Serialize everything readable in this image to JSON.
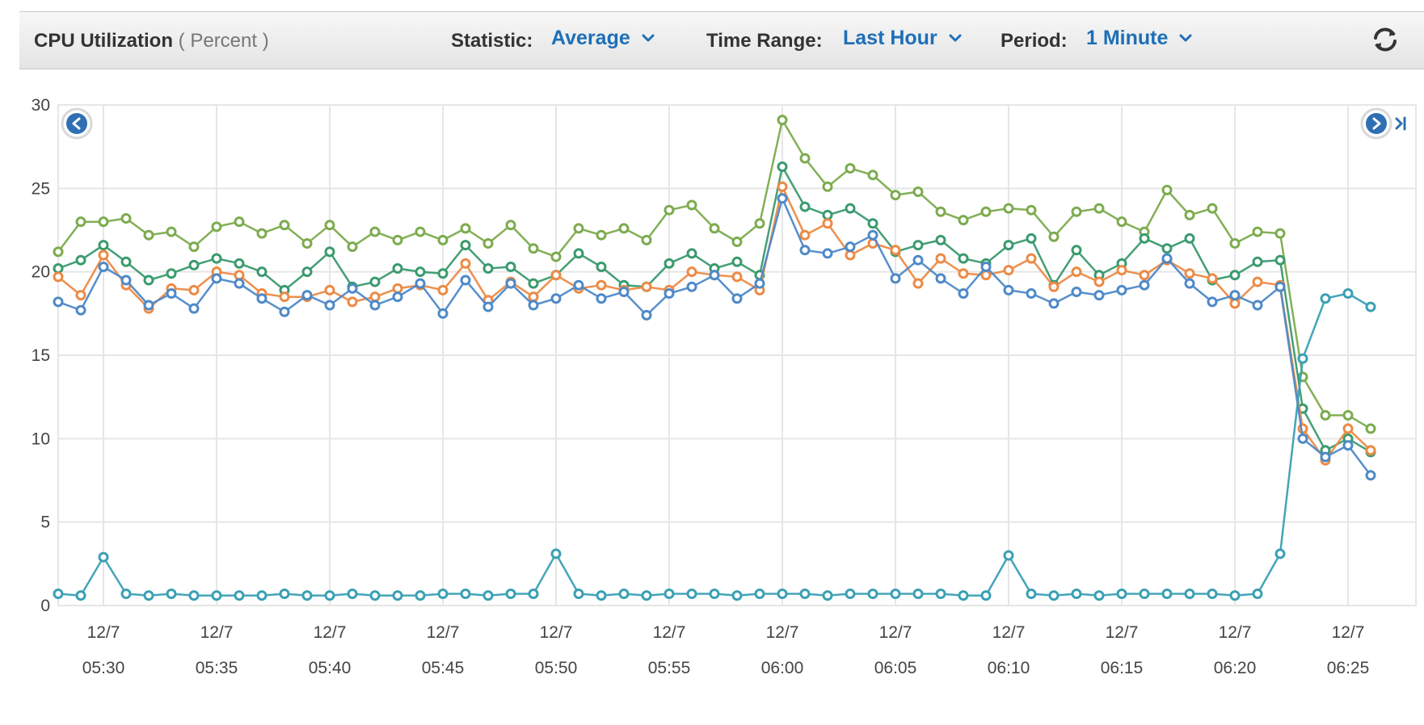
{
  "header": {
    "title": "CPU Utilization",
    "unit": "( Percent )",
    "statistic_label": "Statistic:",
    "statistic_value": "Average",
    "time_range_label": "Time Range:",
    "time_range_value": "Last Hour",
    "period_label": "Period:",
    "period_value": "1 Minute"
  },
  "icons": {
    "dropdown": "chevron-down-icon",
    "refresh": "refresh-icon",
    "pan_left": "chevron-left-circle-icon",
    "pan_right": "chevron-right-circle-icon",
    "jump_end": "skip-to-end-icon"
  },
  "colors": {
    "accent": "#1e6fb7",
    "grid": "#e6e6e6"
  },
  "chart_data": {
    "type": "line",
    "title": "CPU Utilization",
    "ylabel": "Percent",
    "ylim": [
      0,
      30
    ],
    "yticks": [
      0,
      5,
      10,
      15,
      20,
      25,
      30
    ],
    "xlim": [
      "05:28",
      "06:28"
    ],
    "xticks": [
      {
        "date": "12/7",
        "time": "05:30"
      },
      {
        "date": "12/7",
        "time": "05:35"
      },
      {
        "date": "12/7",
        "time": "05:40"
      },
      {
        "date": "12/7",
        "time": "05:45"
      },
      {
        "date": "12/7",
        "time": "05:50"
      },
      {
        "date": "12/7",
        "time": "05:55"
      },
      {
        "date": "12/7",
        "time": "06:00"
      },
      {
        "date": "12/7",
        "time": "06:05"
      },
      {
        "date": "12/7",
        "time": "06:10"
      },
      {
        "date": "12/7",
        "time": "06:15"
      },
      {
        "date": "12/7",
        "time": "06:20"
      },
      {
        "date": "12/7",
        "time": "06:25"
      }
    ],
    "x": [
      "05:28",
      "05:29",
      "05:30",
      "05:31",
      "05:32",
      "05:33",
      "05:34",
      "05:35",
      "05:36",
      "05:37",
      "05:38",
      "05:39",
      "05:40",
      "05:41",
      "05:42",
      "05:43",
      "05:44",
      "05:45",
      "05:46",
      "05:47",
      "05:48",
      "05:49",
      "05:50",
      "05:51",
      "05:52",
      "05:53",
      "05:54",
      "05:55",
      "05:56",
      "05:57",
      "05:58",
      "05:59",
      "06:00",
      "06:01",
      "06:02",
      "06:03",
      "06:04",
      "06:05",
      "06:06",
      "06:07",
      "06:08",
      "06:09",
      "06:10",
      "06:11",
      "06:12",
      "06:13",
      "06:14",
      "06:15",
      "06:16",
      "06:17",
      "06:18",
      "06:19",
      "06:20",
      "06:21",
      "06:22",
      "06:23",
      "06:24",
      "06:25",
      "06:26"
    ],
    "grid": true,
    "legend": "none",
    "series": [
      {
        "color": "#7cab4e",
        "values": [
          21.2,
          23.0,
          23.0,
          23.2,
          22.2,
          22.4,
          21.5,
          22.7,
          23.0,
          22.3,
          22.8,
          21.7,
          22.8,
          21.5,
          22.4,
          21.9,
          22.4,
          21.9,
          22.6,
          21.7,
          22.8,
          21.4,
          20.9,
          22.6,
          22.2,
          22.6,
          21.9,
          23.7,
          24.0,
          22.6,
          21.8,
          22.9,
          29.1,
          26.8,
          25.1,
          26.2,
          25.8,
          24.6,
          24.8,
          23.6,
          23.1,
          23.6,
          23.8,
          23.7,
          22.1,
          23.6,
          23.8,
          23.0,
          22.4,
          24.9,
          23.4,
          23.8,
          21.7,
          22.4,
          22.3,
          13.7,
          11.4,
          11.4,
          10.6
        ]
      },
      {
        "color": "#3a9a6e",
        "values": [
          20.2,
          20.7,
          21.6,
          20.6,
          19.5,
          19.9,
          20.4,
          20.8,
          20.5,
          20.0,
          18.9,
          20.0,
          21.2,
          19.1,
          19.4,
          20.2,
          20.0,
          19.9,
          21.6,
          20.2,
          20.3,
          19.3,
          19.8,
          21.1,
          20.3,
          19.2,
          19.1,
          20.5,
          21.1,
          20.2,
          20.6,
          19.8,
          26.3,
          23.9,
          23.4,
          23.8,
          22.9,
          21.2,
          21.6,
          21.9,
          20.8,
          20.5,
          21.6,
          22.0,
          19.2,
          21.3,
          19.8,
          20.5,
          22.0,
          21.4,
          22.0,
          19.5,
          19.8,
          20.6,
          20.7,
          11.8,
          9.3,
          10.0,
          9.2
        ]
      },
      {
        "color": "#ec8a45",
        "values": [
          19.7,
          18.6,
          21.0,
          19.2,
          17.8,
          19.0,
          18.9,
          20.0,
          19.8,
          18.7,
          18.5,
          18.5,
          18.9,
          18.2,
          18.5,
          19.0,
          19.2,
          18.9,
          20.5,
          18.3,
          19.4,
          18.5,
          19.8,
          19.0,
          19.2,
          18.9,
          19.1,
          18.9,
          20.0,
          19.8,
          19.7,
          18.9,
          25.1,
          22.2,
          22.9,
          21.0,
          21.7,
          21.3,
          19.3,
          20.8,
          19.9,
          19.8,
          20.1,
          20.8,
          19.1,
          20.0,
          19.4,
          20.1,
          19.8,
          20.7,
          19.9,
          19.6,
          18.1,
          19.4,
          19.2,
          10.6,
          8.7,
          10.6,
          9.3
        ]
      },
      {
        "color": "#4e89c8",
        "values": [
          18.2,
          17.7,
          20.3,
          19.5,
          18.0,
          18.7,
          17.8,
          19.6,
          19.3,
          18.4,
          17.6,
          18.6,
          18.0,
          19.0,
          18.0,
          18.5,
          19.3,
          17.5,
          19.5,
          17.9,
          19.3,
          18.0,
          18.4,
          19.2,
          18.4,
          18.8,
          17.4,
          18.7,
          19.1,
          19.8,
          18.4,
          19.3,
          24.4,
          21.3,
          21.1,
          21.5,
          22.2,
          19.6,
          20.7,
          19.6,
          18.7,
          20.3,
          18.9,
          18.7,
          18.1,
          18.8,
          18.6,
          18.9,
          19.2,
          20.8,
          19.3,
          18.2,
          18.6,
          18.0,
          19.1,
          10.0,
          8.9,
          9.6,
          7.8
        ]
      },
      {
        "color": "#3aa0b4",
        "values": [
          0.7,
          0.6,
          2.9,
          0.7,
          0.6,
          0.7,
          0.6,
          0.6,
          0.6,
          0.6,
          0.7,
          0.6,
          0.6,
          0.7,
          0.6,
          0.6,
          0.6,
          0.7,
          0.7,
          0.6,
          0.7,
          0.7,
          3.1,
          0.7,
          0.6,
          0.7,
          0.6,
          0.7,
          0.7,
          0.7,
          0.6,
          0.7,
          0.7,
          0.7,
          0.6,
          0.7,
          0.7,
          0.7,
          0.7,
          0.7,
          0.6,
          0.6,
          3.0,
          0.7,
          0.6,
          0.7,
          0.6,
          0.7,
          0.7,
          0.7,
          0.7,
          0.7,
          0.6,
          0.7,
          3.1,
          14.8,
          18.4,
          18.7,
          17.9
        ]
      }
    ]
  }
}
